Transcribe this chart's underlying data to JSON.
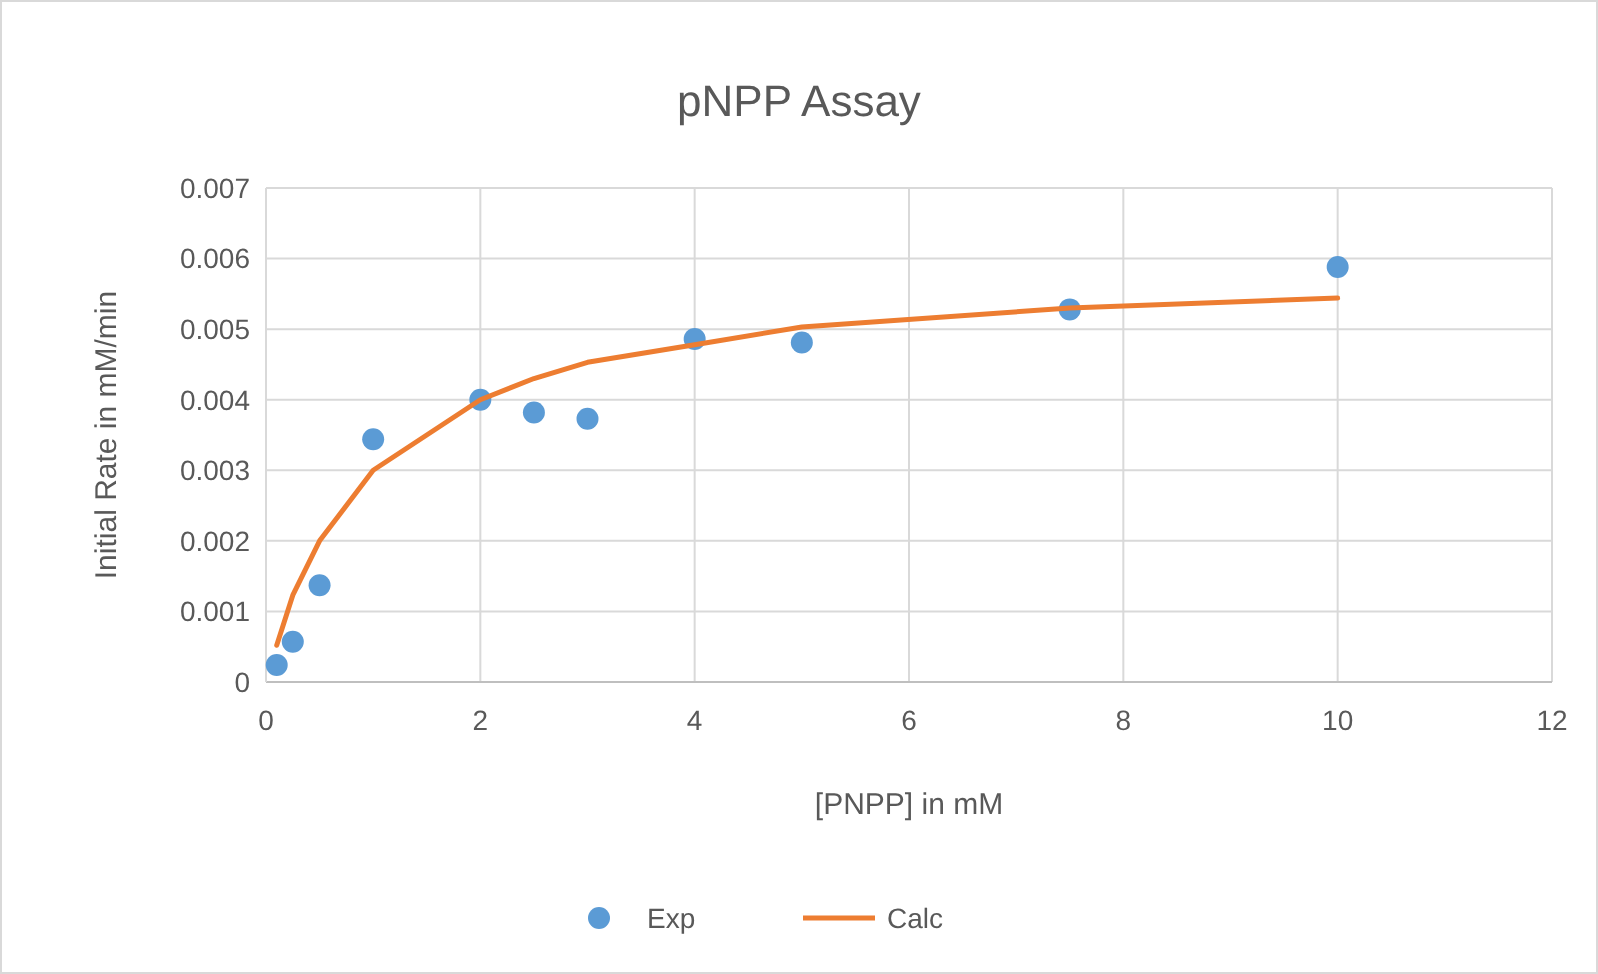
{
  "chart_data": {
    "type": "scatter",
    "title": "pNPP Assay",
    "xlabel": "[PNPP] in mM",
    "ylabel": "Initial Rate in mM/min",
    "x": [
      0.1,
      0.25,
      0.5,
      1,
      2,
      2.5,
      3,
      4,
      5,
      7.5,
      10
    ],
    "series": [
      {
        "name": "Exp",
        "color": "#5b9bd5",
        "marker": "circle",
        "values": [
          0.00024,
          0.00057,
          0.00137,
          0.00344,
          0.004,
          0.00382,
          0.00373,
          0.00486,
          0.00481,
          0.00528,
          0.00588
        ]
      },
      {
        "name": "Calc",
        "type": "line",
        "color": "#ed7d31",
        "marker": "none",
        "values": [
          0.00052,
          0.00123,
          0.002,
          0.003,
          0.004,
          0.0043,
          0.00453,
          0.00478,
          0.00503,
          0.0053,
          0.00544
        ]
      }
    ],
    "xlim": [
      0,
      12
    ],
    "xticks": [
      0,
      2,
      4,
      6,
      8,
      10,
      12
    ],
    "ylim": [
      0,
      0.007
    ],
    "yticks": [
      0,
      0.001,
      0.002,
      0.003,
      0.004,
      0.005,
      0.006,
      0.007
    ],
    "grid": true,
    "legend": "bottom"
  }
}
